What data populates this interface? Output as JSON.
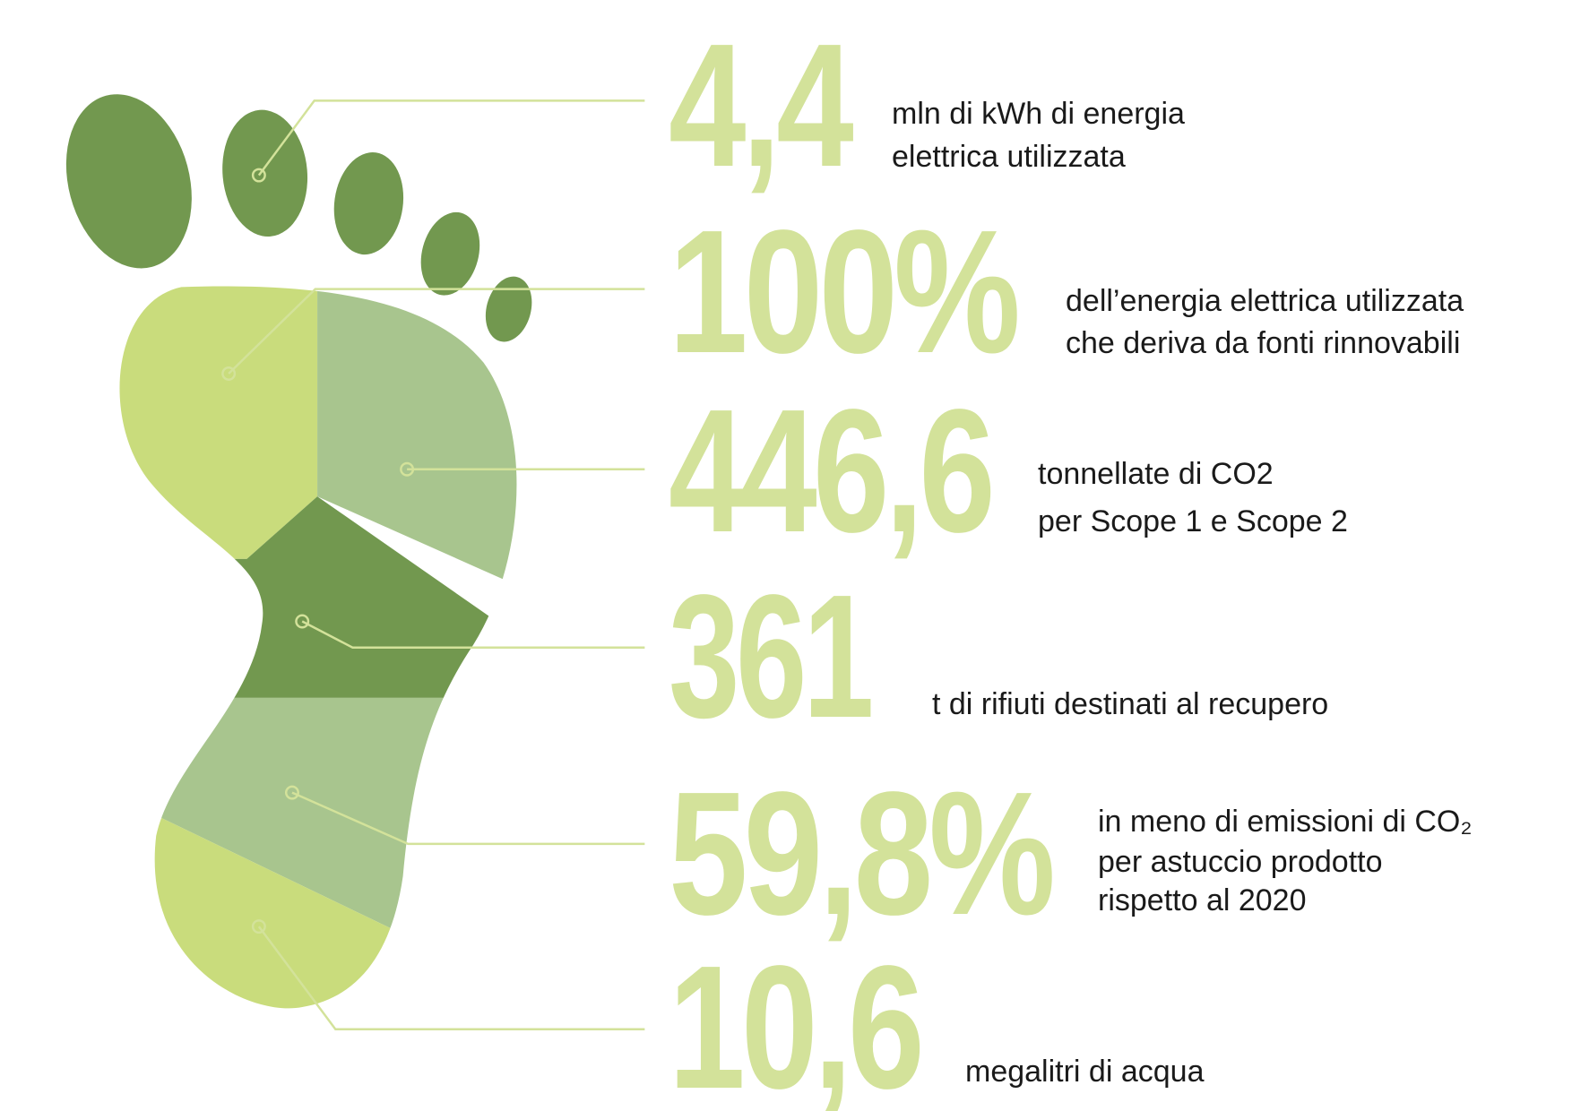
{
  "items": [
    {
      "value": "4,4",
      "lines": [
        "mln di kWh di energia",
        "elettrica utilizzata"
      ]
    },
    {
      "value": "100%",
      "lines": [
        "dell’energia elettrica utilizzata",
        "che deriva da fonti rinnovabili"
      ]
    },
    {
      "value": "446,6",
      "lines": [
        "tonnellate di CO2",
        "per Scope 1 e Scope 2"
      ]
    },
    {
      "value": "361",
      "lines": [
        "t di rifiuti destinati al recupero"
      ]
    },
    {
      "value": "59,8%",
      "lines": [
        "in meno di emissioni di CO₂",
        "per astuccio prodotto",
        "rispetto al 2020"
      ]
    },
    {
      "value": "10,6",
      "lines": [
        "megalitri di acqua"
      ]
    }
  ]
}
